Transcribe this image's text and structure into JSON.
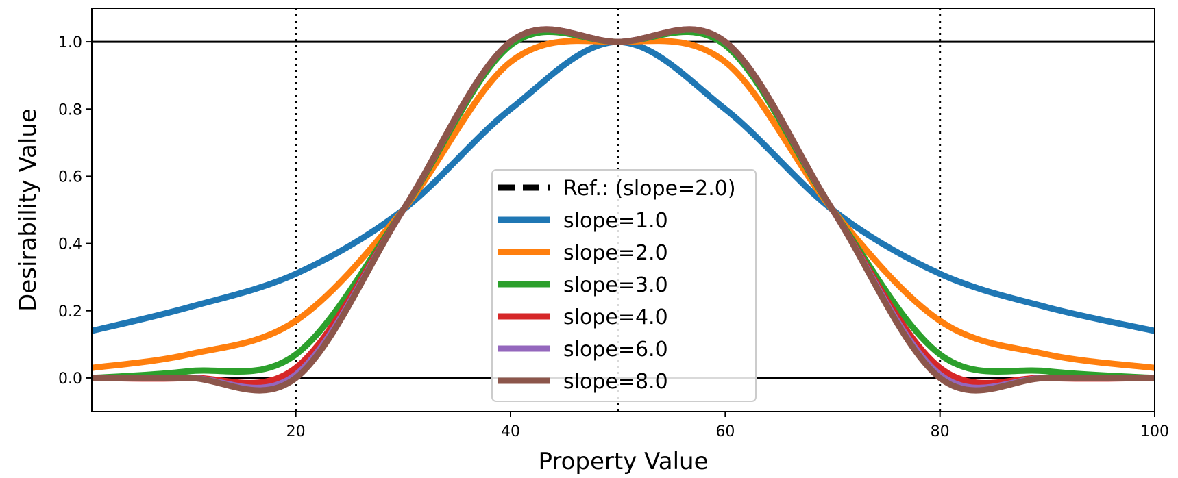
{
  "chart_data": {
    "type": "line",
    "xlabel": "Property Value",
    "ylabel": "Desirability Value",
    "xlim": [
      1,
      100
    ],
    "ylim": [
      -0.1,
      1.1
    ],
    "xticks": [
      20,
      40,
      60,
      80,
      100
    ],
    "yticks": [
      0.0,
      0.2,
      0.4,
      0.6,
      0.8,
      1.0
    ],
    "xtick_labels": [
      "20",
      "40",
      "60",
      "80",
      "100"
    ],
    "ytick_labels": [
      "0.0",
      "0.2",
      "0.4",
      "0.6",
      "0.8",
      "1.0"
    ],
    "grid": false,
    "horizontal_lines": [
      0.0,
      1.0
    ],
    "vertical_dotted_lines": [
      20,
      50,
      80
    ],
    "legend_position": "center",
    "reference": {
      "name": "Ref.: (slope=2.0)",
      "color": "#000000",
      "style": "dashed"
    },
    "series": [
      {
        "name": "slope=1.0",
        "slope": 1.0,
        "color": "#1f77b4",
        "x": [
          1,
          10,
          20,
          30,
          40,
          50,
          60,
          70,
          80,
          90,
          100
        ],
        "y": [
          0.14,
          0.21,
          0.31,
          0.5,
          0.8,
          1.0,
          0.8,
          0.5,
          0.31,
          0.21,
          0.14
        ]
      },
      {
        "name": "slope=2.0",
        "slope": 2.0,
        "color": "#ff7f0e",
        "x": [
          1,
          10,
          20,
          30,
          40,
          50,
          60,
          70,
          80,
          90,
          100
        ],
        "y": [
          0.03,
          0.07,
          0.17,
          0.5,
          0.94,
          1.0,
          0.94,
          0.5,
          0.17,
          0.07,
          0.03
        ]
      },
      {
        "name": "slope=3.0",
        "slope": 3.0,
        "color": "#2ca02c",
        "x": [
          1,
          10,
          20,
          30,
          40,
          50,
          60,
          70,
          80,
          90,
          100
        ],
        "y": [
          0.0,
          0.02,
          0.07,
          0.5,
          0.99,
          1.0,
          0.99,
          0.5,
          0.07,
          0.02,
          0.0
        ]
      },
      {
        "name": "slope=4.0",
        "slope": 4.0,
        "color": "#d62728",
        "x": [
          1,
          10,
          20,
          30,
          40,
          50,
          60,
          70,
          80,
          90,
          100
        ],
        "y": [
          0.0,
          0.0,
          0.03,
          0.5,
          1.0,
          1.0,
          1.0,
          0.5,
          0.03,
          0.0,
          0.0
        ]
      },
      {
        "name": "slope=6.0",
        "slope": 6.0,
        "color": "#9467bd",
        "x": [
          1,
          10,
          20,
          30,
          40,
          50,
          60,
          70,
          80,
          90,
          100
        ],
        "y": [
          0.0,
          0.0,
          0.01,
          0.5,
          1.0,
          1.0,
          1.0,
          0.5,
          0.01,
          0.0,
          0.0
        ]
      },
      {
        "name": "slope=8.0",
        "slope": 8.0,
        "color": "#8c564b",
        "x": [
          1,
          10,
          20,
          30,
          40,
          50,
          60,
          70,
          80,
          90,
          100
        ],
        "y": [
          0.0,
          0.0,
          0.0,
          0.5,
          1.0,
          1.0,
          1.0,
          0.5,
          0.0,
          0.0,
          0.0
        ]
      }
    ]
  }
}
